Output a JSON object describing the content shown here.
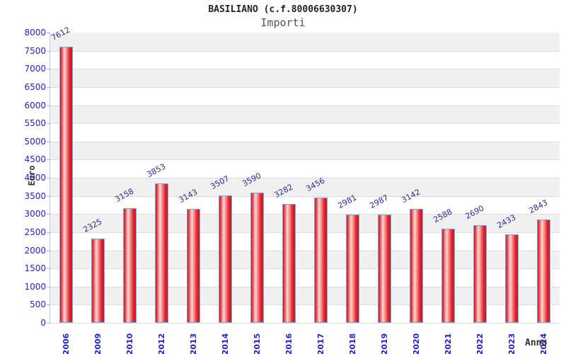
{
  "header": {
    "title": "BASILIANO (c.f.80006630307)",
    "subtitle": "Importi"
  },
  "chart_data": {
    "type": "bar",
    "title": "BASILIANO (c.f.80006630307)",
    "subtitle": "Importi",
    "xlabel": "Anno",
    "ylabel": "Euro",
    "categories": [
      "2006",
      "2009",
      "2010",
      "2012",
      "2013",
      "2014",
      "2015",
      "2016",
      "2017",
      "2018",
      "2019",
      "2020",
      "2021",
      "2022",
      "2023",
      "2024"
    ],
    "values": [
      7612,
      2325,
      3158,
      3853,
      3143,
      3507,
      3590,
      3282,
      3456,
      2981,
      2987,
      3142,
      2588,
      2690,
      2433,
      2843
    ],
    "ylim": [
      0,
      8000
    ],
    "ytick_step": 500,
    "yticks": [
      0,
      500,
      1000,
      1500,
      2000,
      2500,
      3000,
      3500,
      4000,
      4500,
      5000,
      5500,
      6000,
      6500,
      7000,
      7500,
      8000
    ],
    "grid": true,
    "legend_position": "none",
    "colors": {
      "bar_edge_red": "#d80f1f",
      "bar_mid_light": "#f9d7d3",
      "bar_border": "#6db0e8",
      "tick_label": "#2222cc",
      "value_label": "#2a2a9e",
      "axis_title": "#333333",
      "band_gray": "#f0f0f0",
      "band_white": "#ffffff",
      "gridline": "#dcdcdc",
      "tick_mark": "#9cb6e8"
    }
  }
}
